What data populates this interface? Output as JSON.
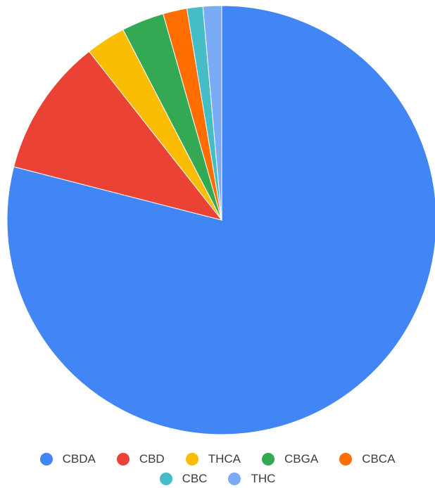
{
  "chart_data": {
    "type": "pie",
    "title": "",
    "start_angle_deg": 0,
    "direction": "clockwise",
    "legend_position": "bottom",
    "slices": [
      {
        "label": "CBDA",
        "value": 79.0,
        "color": "#4285F4"
      },
      {
        "label": "CBD",
        "value": 10.4,
        "color": "#EA4335"
      },
      {
        "label": "THCA",
        "value": 3.0,
        "color": "#FBBC04"
      },
      {
        "label": "CBGA",
        "value": 3.2,
        "color": "#34A853"
      },
      {
        "label": "CBCA",
        "value": 1.8,
        "color": "#FF6D01"
      },
      {
        "label": "CBC",
        "value": 1.2,
        "color": "#46BDC6"
      },
      {
        "label": "THC",
        "value": 1.4,
        "color": "#7BAAF7"
      }
    ]
  }
}
